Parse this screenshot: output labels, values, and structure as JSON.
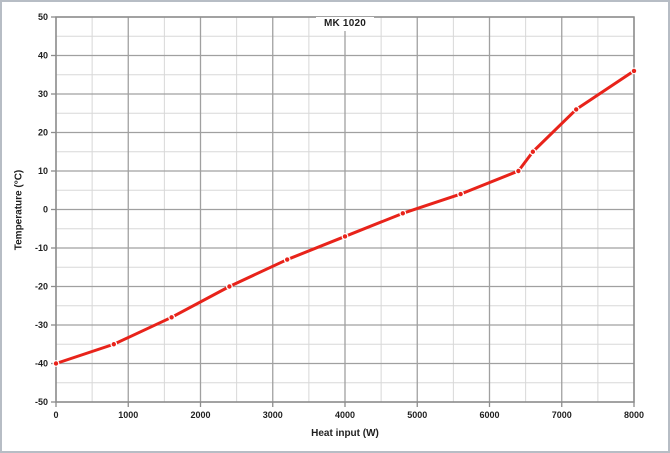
{
  "window": {
    "background": "#ffffff",
    "border_color": "#b7bdc5"
  },
  "chart_data": {
    "type": "line",
    "title": "MK 1020",
    "xlabel": "Heat input (W)",
    "ylabel": "Temperature (°C)",
    "xlim": [
      0,
      8000
    ],
    "ylim": [
      -50,
      50
    ],
    "x_major_step": 1000,
    "x_minor_step": 500,
    "y_major_step": 10,
    "y_minor_step": 5,
    "grid": true,
    "legend": "none",
    "x_tick_labels": [
      "0",
      "1000",
      "2000",
      "3000",
      "4000",
      "5000",
      "6000",
      "7000",
      "8000"
    ],
    "y_tick_labels": [
      "50",
      "40",
      "30",
      "20",
      "10",
      "0",
      "-10",
      "-20",
      "-30",
      "-40",
      "-50"
    ],
    "series": [
      {
        "name": "MK 1020",
        "color": "#e8231a",
        "marker": "circle",
        "points": [
          [
            0,
            -40
          ],
          [
            800,
            -35
          ],
          [
            1600,
            -28
          ],
          [
            2400,
            -20
          ],
          [
            3200,
            -13
          ],
          [
            4000,
            -7
          ],
          [
            4800,
            -1
          ],
          [
            5600,
            4
          ],
          [
            6400,
            10
          ],
          [
            6600,
            15
          ],
          [
            7200,
            26
          ],
          [
            8000,
            36
          ]
        ]
      }
    ],
    "colors": {
      "line": "#e8231a",
      "major_grid": "#a0a0a0",
      "minor_grid": "#d8d8d8",
      "axis": "#8c8c8c",
      "text": "#1f1f1f"
    }
  }
}
